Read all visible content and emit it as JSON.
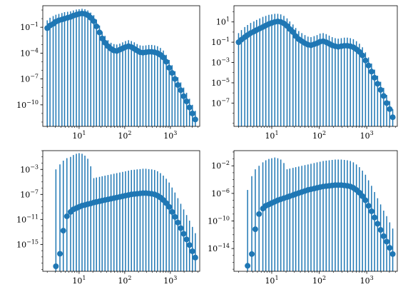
{
  "figure": {
    "grid": "2x2",
    "color": "#1f77b4"
  },
  "chart_data": [
    {
      "type": "scatter",
      "xscale": "log",
      "yscale": "log",
      "xlim": [
        1.6,
        4400
      ],
      "ylim_log10": [
        -12.5,
        1.5
      ],
      "xticks": [
        {
          "v": 10,
          "e": "1"
        },
        {
          "v": 100,
          "e": "2"
        },
        {
          "v": 1000,
          "e": "3"
        }
      ],
      "yticks": [
        {
          "v": 0.1,
          "e": "−1"
        },
        {
          "v": 0.0001,
          "e": "−4"
        },
        {
          "v": 1e-07,
          "e": "−7"
        },
        {
          "v": 1e-10,
          "e": "−10"
        }
      ],
      "x": [
        2.0,
        2.3,
        2.7,
        3.1,
        3.6,
        4.2,
        4.8,
        5.6,
        6.5,
        7.5,
        8.7,
        10,
        11.6,
        13.4,
        15.5,
        18,
        21,
        24,
        28,
        32,
        37,
        43,
        50,
        58,
        67,
        78,
        90,
        104,
        121,
        140,
        162,
        187,
        217,
        251,
        291,
        337,
        390,
        452,
        523,
        606,
        702,
        813,
        941,
        1090,
        1262,
        1462,
        1693,
        1961,
        2271,
        2630,
        3046,
        3528
      ],
      "y_log10": [
        -1.1,
        -0.8,
        -0.6,
        -0.35,
        -0.2,
        -0.1,
        0.0,
        0.1,
        0.2,
        0.35,
        0.45,
        0.55,
        0.6,
        0.55,
        0.4,
        0.1,
        -0.3,
        -0.9,
        -1.6,
        -2.3,
        -2.8,
        -3.2,
        -3.5,
        -3.7,
        -3.75,
        -3.6,
        -3.45,
        -3.3,
        -3.2,
        -3.3,
        -3.5,
        -3.7,
        -3.9,
        -3.95,
        -3.9,
        -3.85,
        -3.85,
        -3.9,
        -4.0,
        -4.2,
        -4.5,
        -5.0,
        -5.7,
        -6.3,
        -7.0,
        -7.7,
        -8.3,
        -9.0,
        -9.6,
        -10.3,
        -11.0,
        -11.7
      ],
      "err_low_log10": -13.0,
      "err_high_log10": [
        -0.2,
        0.1,
        0.3,
        0.45,
        0.55,
        0.65,
        0.75,
        0.8,
        0.85,
        0.95,
        1.05,
        1.1,
        1.15,
        1.1,
        0.95,
        0.7,
        0.4,
        -0.1,
        -0.8,
        -1.5,
        -2.0,
        -2.5,
        -2.8,
        -2.95,
        -3.0,
        -2.9,
        -2.75,
        -2.6,
        -2.5,
        -2.6,
        -2.75,
        -2.95,
        -3.1,
        -3.15,
        -3.1,
        -3.05,
        -3.05,
        -3.1,
        -3.2,
        -3.4,
        -3.7,
        -4.2,
        -4.8,
        -5.4,
        -6.1,
        -6.8,
        -7.4,
        -8.0,
        -8.6,
        -9.3,
        -10.0,
        -10.7
      ]
    },
    {
      "type": "scatter",
      "xscale": "log",
      "yscale": "log",
      "xlim": [
        1.6,
        4400
      ],
      "ylim_log10": [
        -9.3,
        2.6
      ],
      "xticks": [
        {
          "v": 10,
          "e": "1"
        },
        {
          "v": 100,
          "e": "2"
        },
        {
          "v": 1000,
          "e": "3"
        }
      ],
      "yticks": [
        {
          "v": 10,
          "e": "1",
          "m": ""
        },
        {
          "v": 0.1,
          "e": "−1"
        },
        {
          "v": 0.001,
          "e": "−3"
        },
        {
          "v": 1e-05,
          "e": "−5"
        },
        {
          "v": 1e-07,
          "e": "−7"
        }
      ],
      "x": [
        2.0,
        2.3,
        2.7,
        3.1,
        3.6,
        4.2,
        4.8,
        5.6,
        6.5,
        7.5,
        8.7,
        10,
        11.6,
        13.4,
        15.5,
        18,
        21,
        24,
        28,
        32,
        37,
        43,
        50,
        58,
        67,
        78,
        90,
        104,
        121,
        140,
        162,
        187,
        217,
        251,
        291,
        337,
        390,
        452,
        523,
        606,
        702,
        813,
        941,
        1090,
        1262,
        1462,
        1693,
        1961,
        2271,
        2630,
        3046,
        3528
      ],
      "y_log10": [
        -1.0,
        -0.75,
        -0.5,
        -0.3,
        -0.1,
        0.05,
        0.2,
        0.35,
        0.5,
        0.65,
        0.8,
        0.9,
        1.0,
        1.05,
        1.0,
        0.85,
        0.6,
        0.3,
        0.0,
        -0.4,
        -0.7,
        -0.9,
        -1.1,
        -1.25,
        -1.3,
        -1.2,
        -1.1,
        -0.95,
        -0.9,
        -1.0,
        -1.15,
        -1.3,
        -1.4,
        -1.45,
        -1.4,
        -1.35,
        -1.35,
        -1.4,
        -1.5,
        -1.7,
        -1.95,
        -2.3,
        -2.8,
        -3.3,
        -3.9,
        -4.5,
        -5.1,
        -5.7,
        -6.3,
        -7.0,
        -7.6,
        -8.4
      ],
      "err_low_log10": -9.5,
      "err_high_log10": [
        -0.1,
        0.2,
        0.5,
        0.7,
        0.9,
        1.05,
        1.2,
        1.35,
        1.5,
        1.6,
        1.7,
        1.75,
        1.8,
        1.8,
        1.75,
        1.6,
        1.35,
        1.05,
        0.75,
        0.4,
        0.1,
        -0.1,
        -0.3,
        -0.45,
        -0.5,
        -0.4,
        -0.3,
        -0.15,
        -0.1,
        -0.2,
        -0.35,
        -0.5,
        -0.6,
        -0.65,
        -0.6,
        -0.55,
        -0.55,
        -0.6,
        -0.7,
        -0.9,
        -1.15,
        -1.5,
        -2.0,
        -2.5,
        -3.1,
        -3.7,
        -4.3,
        -4.9,
        -5.5,
        -6.2,
        -6.8,
        -7.6
      ]
    },
    {
      "type": "scatter",
      "xscale": "log",
      "yscale": "log",
      "xlim": [
        1.6,
        4400
      ],
      "ylim_log10": [
        -19.3,
        0.0
      ],
      "xticks": [
        {
          "v": 10,
          "e": "1"
        },
        {
          "v": 100,
          "e": "2"
        },
        {
          "v": 1000,
          "e": "3"
        }
      ],
      "yticks": [
        {
          "v": 0.001,
          "e": "−3"
        },
        {
          "v": 1e-07,
          "e": "−7"
        },
        {
          "v": 1e-11,
          "e": "−11"
        },
        {
          "v": 1e-15,
          "e": "−15"
        }
      ],
      "x": [
        3.1,
        3.8,
        4.5,
        5.4,
        6.5,
        7.5,
        8.7,
        10,
        11.6,
        13.4,
        15.5,
        18,
        21,
        24,
        28,
        32,
        37,
        43,
        50,
        58,
        67,
        78,
        90,
        104,
        121,
        140,
        162,
        187,
        217,
        251,
        291,
        337,
        390,
        452,
        523,
        606,
        702,
        813,
        941,
        1090,
        1262,
        1462,
        1693,
        1961,
        2271,
        2630,
        3046,
        3528
      ],
      "y_log10": [
        -18.5,
        -16.5,
        -12.8,
        -10.5,
        -9.8,
        -9.4,
        -9.2,
        -9.0,
        -8.8,
        -8.7,
        -8.55,
        -8.45,
        -8.3,
        -8.2,
        -8.1,
        -8.0,
        -7.9,
        -7.8,
        -7.7,
        -7.6,
        -7.5,
        -7.4,
        -7.3,
        -7.2,
        -7.1,
        -7.0,
        -6.95,
        -6.9,
        -6.85,
        -6.8,
        -6.8,
        -6.85,
        -6.9,
        -7.0,
        -7.2,
        -7.5,
        -7.9,
        -8.4,
        -9.0,
        -9.8,
        -10.6,
        -11.5,
        -12.4,
        -13.3,
        -14.2,
        -15.1,
        -16.1,
        -17.1
      ],
      "err_low_log10": -20.0,
      "err_high_log10": [
        -3.0,
        -2.2,
        -1.6,
        -1.2,
        -1.0,
        -0.7,
        -0.5,
        -0.4,
        -0.5,
        -0.8,
        -1.3,
        -2.5,
        -4.4,
        -4.3,
        -4.2,
        -4.1,
        -4.0,
        -3.9,
        -3.8,
        -3.7,
        -3.6,
        -3.5,
        -3.4,
        -3.3,
        -3.2,
        -3.1,
        -3.05,
        -3.0,
        -2.95,
        -2.9,
        -2.9,
        -2.95,
        -3.0,
        -3.1,
        -3.3,
        -3.6,
        -4.0,
        -4.5,
        -5.1,
        -5.9,
        -6.7,
        -7.6,
        -8.5,
        -9.4,
        -10.3,
        -11.2,
        -12.2,
        -13.2
      ]
    },
    {
      "type": "scatter",
      "xscale": "log",
      "yscale": "log",
      "xlim": [
        1.6,
        4400
      ],
      "ylim_log10": [
        -17.3,
        0.2
      ],
      "xticks": [
        {
          "v": 10,
          "e": "1"
        },
        {
          "v": 100,
          "e": "2"
        },
        {
          "v": 1000,
          "e": "3"
        }
      ],
      "yticks": [
        {
          "v": 0.01,
          "e": "−2"
        },
        {
          "v": 1e-06,
          "e": "−6"
        },
        {
          "v": 1e-10,
          "e": "−10"
        },
        {
          "v": 1e-14,
          "e": "−14"
        }
      ],
      "x": [
        3.1,
        3.8,
        4.5,
        5.4,
        6.5,
        7.5,
        8.7,
        10,
        11.6,
        13.4,
        15.5,
        18,
        21,
        24,
        28,
        32,
        37,
        43,
        50,
        58,
        67,
        78,
        90,
        104,
        121,
        140,
        162,
        187,
        217,
        251,
        291,
        337,
        390,
        452,
        523,
        606,
        702,
        813,
        941,
        1090,
        1262,
        1462,
        1693,
        1961,
        2271,
        2630,
        3046,
        3528
      ],
      "y_log10": [
        -16.5,
        -14.8,
        -11.2,
        -9.0,
        -8.2,
        -7.8,
        -7.6,
        -7.4,
        -7.2,
        -7.0,
        -6.85,
        -6.7,
        -6.55,
        -6.4,
        -6.25,
        -6.1,
        -5.95,
        -5.8,
        -5.65,
        -5.5,
        -5.4,
        -5.3,
        -5.2,
        -5.1,
        -5.0,
        -4.95,
        -4.9,
        -4.85,
        -4.8,
        -4.8,
        -4.8,
        -4.85,
        -4.9,
        -5.0,
        -5.2,
        -5.5,
        -5.9,
        -6.4,
        -7.0,
        -7.8,
        -8.6,
        -9.5,
        -10.4,
        -11.3,
        -12.2,
        -13.0,
        -13.9,
        -14.8
      ],
      "err_low_log10": -18.0,
      "err_high_log10": [
        -5.5,
        -3.5,
        -2.5,
        -2.0,
        -1.5,
        -1.2,
        -1.0,
        -0.9,
        -0.8,
        -0.9,
        -1.1,
        -1.6,
        -2.5,
        -2.4,
        -2.3,
        -2.2,
        -2.1,
        -2.0,
        -1.9,
        -1.8,
        -1.7,
        -1.6,
        -1.5,
        -1.4,
        -1.3,
        -1.25,
        -1.2,
        -1.15,
        -1.1,
        -1.1,
        -1.1,
        -1.15,
        -1.2,
        -1.3,
        -1.5,
        -1.8,
        -2.2,
        -2.7,
        -3.3,
        -4.1,
        -4.9,
        -5.8,
        -6.7,
        -7.6,
        -8.5,
        -9.3,
        -10.2,
        -11.1
      ]
    }
  ]
}
